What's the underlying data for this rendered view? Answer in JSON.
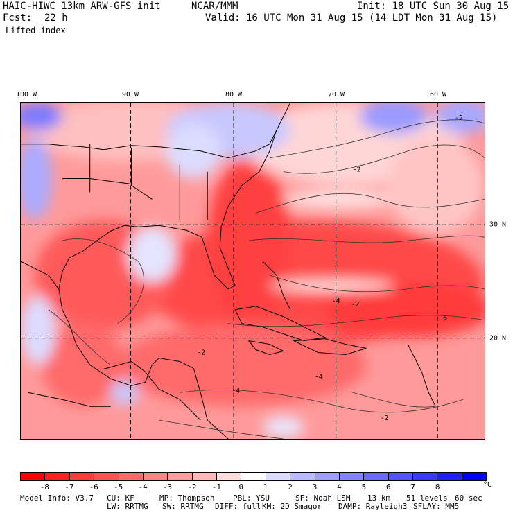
{
  "header": {
    "model": "HAIC-HIWC 13km ARW-GFS init",
    "center": "NCAR/MMM",
    "init": "Init: 18 UTC Sun 30 Aug 15",
    "fcst_label": "Fcst:",
    "fcst_value": "22 h",
    "valid": "Valid: 16 UTC Mon 31 Aug 15 (14 LDT Mon 31 Aug 15)",
    "field": "Lifted index"
  },
  "map": {
    "lon_labels": [
      "100 W",
      "90 W",
      "80 W",
      "70 W",
      "60 W"
    ],
    "lat_labels": [
      "30 N",
      "20 N"
    ],
    "contour_labels": [
      "-2",
      "-4",
      "-6",
      "-2",
      "-2",
      "-4",
      "-2",
      "-2",
      "-4"
    ]
  },
  "colorbar": {
    "ticks": [
      "-8",
      "-7",
      "-6",
      "-5",
      "-4",
      "-3",
      "-2",
      "-1",
      "0",
      "1",
      "2",
      "3",
      "4",
      "5",
      "6",
      "7",
      "8"
    ],
    "unit": "°C",
    "colors": [
      "#ff0000",
      "#ff2020",
      "#ff3a3a",
      "#ff5252",
      "#ff6a6a",
      "#ff8484",
      "#ff9e9e",
      "#ffbaba",
      "#ffdcdc",
      "#ffffff",
      "#dcdcff",
      "#babaff",
      "#9e9eff",
      "#8484ff",
      "#6a6aff",
      "#5252ff",
      "#3a3aff",
      "#2020ff",
      "#0000ff"
    ]
  },
  "footer": {
    "line1": [
      "Model Info: V3.7",
      "CU: KF",
      "MP: Thompson",
      "PBL: YSU",
      "SF: Noah LSM",
      "13 km",
      "51 levels",
      "60 sec"
    ],
    "line2": [
      "LW: RRTMG",
      "SW: RRTMG",
      "DIFF: full",
      "KM: 2D Smagor",
      "DAMP: Rayleigh3",
      "SFLAY: MM5"
    ]
  }
}
